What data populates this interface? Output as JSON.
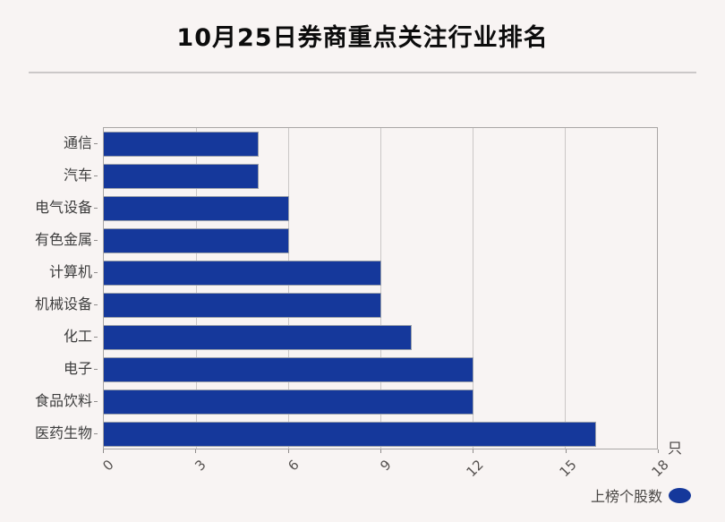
{
  "page": {
    "title": "10月25日券商重点关注行业排名",
    "unit_label": "只"
  },
  "legend": {
    "label": "上榜个股数"
  },
  "colors": {
    "bar": "#15389b",
    "background": "#f8f4f3",
    "gridline": "#cac7c6",
    "plot_border": "#a9a6a5"
  },
  "chart_data": {
    "type": "bar",
    "orientation": "horizontal",
    "title": "10月25日券商重点关注行业排名",
    "series_name": "上榜个股数",
    "categories": [
      "通信",
      "汽车",
      "电气设备",
      "有色金属",
      "计算机",
      "机械设备",
      "化工",
      "电子",
      "食品饮料",
      "医药生物"
    ],
    "values": [
      5,
      5,
      6,
      6,
      9,
      9,
      10,
      12,
      12,
      16
    ],
    "value_unit": "只",
    "xlim": [
      0,
      18
    ],
    "xticks": [
      0,
      3,
      6,
      9,
      12,
      15,
      18
    ],
    "xtick_rotation": -45,
    "grid": true,
    "legend_position": "bottom-right"
  }
}
